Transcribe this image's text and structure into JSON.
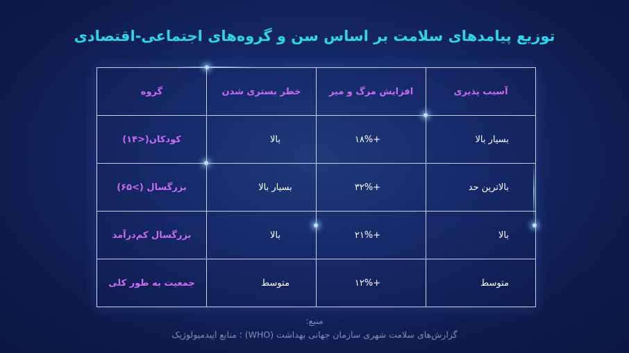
{
  "title": "توزیع پیامدهای سلامت بر اساس سن و گروه‌های اجتماعی-اقتصادی",
  "table": {
    "headers": {
      "vulnerability": "آسیب پذیری",
      "mortality": "افزایش مرگ و میر",
      "hospitalization": "خطر بستری شدن",
      "group": "گروه"
    },
    "rows": [
      {
        "vulnerability": "بسیار بالا",
        "mortality": "+۱۸%",
        "hospitalization": "بالا",
        "group": "کودکان(<۱۴)"
      },
      {
        "vulnerability": "بالاترین حد",
        "mortality": "+۳۲%",
        "hospitalization": "بسیار بالا",
        "group": "بزرگسال (>۶۵)"
      },
      {
        "vulnerability": "بالا",
        "mortality": "+۲۱%",
        "hospitalization": "بالا",
        "group": "بزرگسال کم‌درآمد"
      },
      {
        "vulnerability": "متوسط",
        "mortality": "+۱۲%",
        "hospitalization": "متوسط",
        "group": "جمعیت به طور کلی"
      }
    ]
  },
  "source": {
    "label": "منبع:",
    "text": "گزارش‌های سلامت شهری سازمان جهانی بهداشت (WHO) ؛ منابع اپیدمیولوژیک"
  },
  "colors": {
    "title": "#2fd4e8",
    "accent": "#c86cf0",
    "grid": "#c9d2ee",
    "source": "#7f8db8"
  }
}
